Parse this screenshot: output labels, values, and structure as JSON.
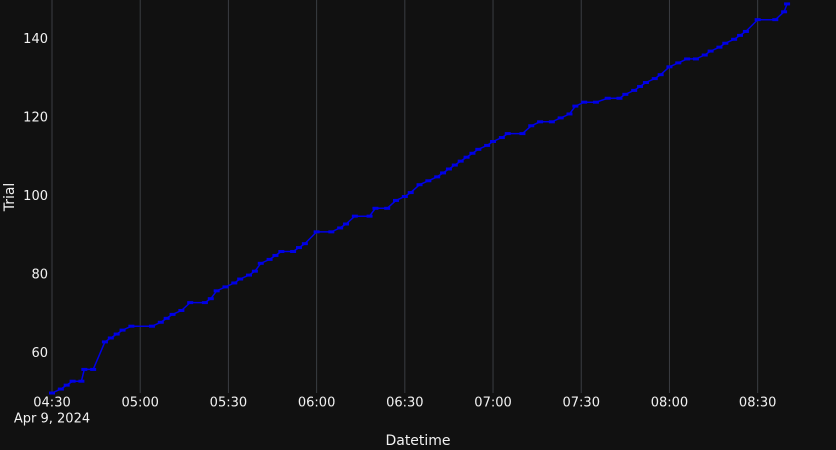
{
  "chart_data": {
    "type": "line",
    "x_label": "Datetime",
    "y_label": "Trial",
    "x_date_label": "Apr 9, 2024",
    "color": "#0000e6",
    "grid": "x",
    "xlim": [
      "04:30",
      "08:41"
    ],
    "xticks": [
      "04:30",
      "05:00",
      "05:30",
      "06:00",
      "06:30",
      "07:00",
      "07:30",
      "08:00",
      "08:30"
    ],
    "ylim": [
      50,
      150
    ],
    "yticks": [
      60,
      80,
      100,
      120,
      140
    ],
    "x": [
      "04:30",
      "04:33",
      "04:35",
      "04:37",
      "04:40",
      "04:41",
      "04:44",
      "04:48",
      "04:50",
      "04:52",
      "04:54",
      "04:57",
      "05:04",
      "05:07",
      "05:09",
      "05:11",
      "05:14",
      "05:17",
      "05:22",
      "05:24",
      "05:26",
      "05:29",
      "05:32",
      "05:34",
      "05:37",
      "05:39",
      "05:41",
      "05:44",
      "05:46",
      "05:48",
      "05:52",
      "05:54",
      "05:56",
      "06:00",
      "06:05",
      "06:08",
      "06:10",
      "06:13",
      "06:18",
      "06:20",
      "06:24",
      "06:27",
      "06:30",
      "06:32",
      "06:35",
      "06:38",
      "06:41",
      "06:43",
      "06:45",
      "06:47",
      "06:49",
      "06:51",
      "06:53",
      "06:55",
      "06:58",
      "07:00",
      "07:03",
      "07:05",
      "07:10",
      "07:13",
      "07:16",
      "07:20",
      "07:23",
      "07:26",
      "07:28",
      "07:31",
      "07:35",
      "07:39",
      "07:43",
      "07:45",
      "07:48",
      "07:50",
      "07:52",
      "07:55",
      "07:57",
      "08:00",
      "08:03",
      "08:06",
      "08:09",
      "08:12",
      "08:14",
      "08:17",
      "08:19",
      "08:22",
      "08:24",
      "08:26",
      "08:30",
      "08:36",
      "08:39",
      "08:40"
    ],
    "values": [
      50,
      51,
      52,
      53,
      53,
      56,
      56,
      63,
      64,
      65,
      66,
      67,
      67,
      68,
      69,
      70,
      71,
      73,
      73,
      74,
      76,
      77,
      78,
      79,
      80,
      81,
      83,
      84,
      85,
      86,
      86,
      87,
      88,
      91,
      91,
      92,
      93,
      95,
      95,
      97,
      97,
      99,
      100,
      101,
      103,
      104,
      105,
      106,
      107,
      108,
      109,
      110,
      111,
      112,
      113,
      114,
      115,
      116,
      116,
      118,
      119,
      119,
      120,
      121,
      123,
      124,
      124,
      125,
      125,
      126,
      127,
      128,
      129,
      130,
      131,
      133,
      134,
      135,
      135,
      136,
      137,
      138,
      139,
      140,
      141,
      142,
      145,
      145,
      147,
      149
    ]
  }
}
